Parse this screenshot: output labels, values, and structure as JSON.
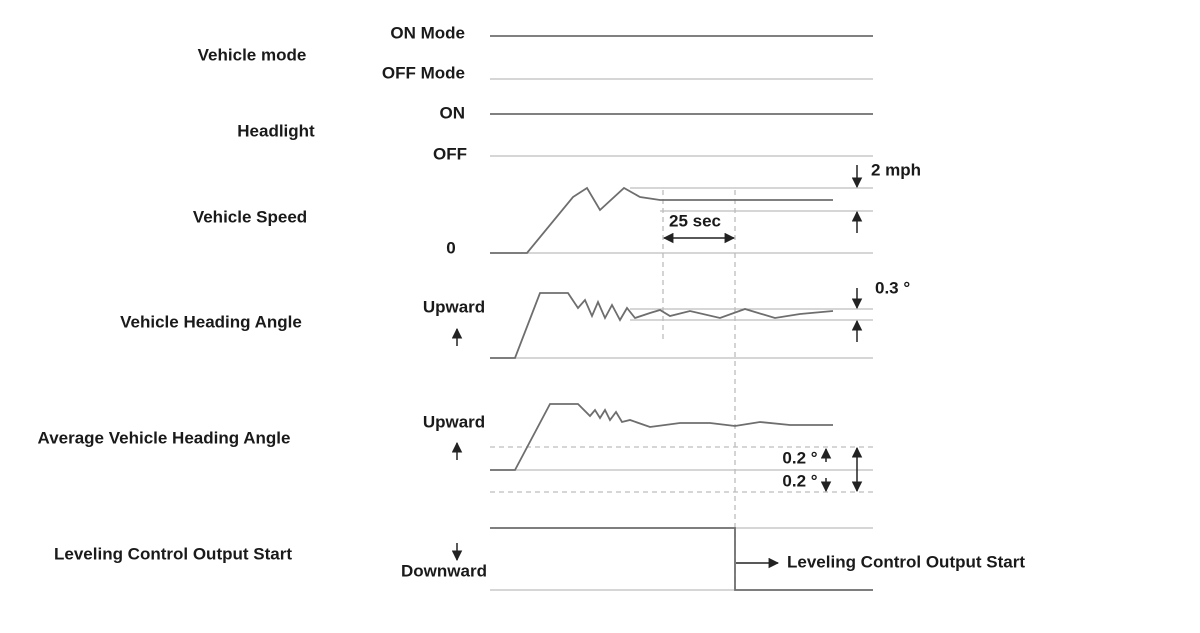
{
  "rows": [
    {
      "label": "Vehicle mode",
      "levels": [
        "ON Mode",
        "OFF Mode"
      ]
    },
    {
      "label": "Headlight",
      "levels": [
        "ON",
        "OFF"
      ]
    },
    {
      "label": "Vehicle Speed",
      "levels": [
        "0"
      ]
    },
    {
      "label": "Vehicle Heading Angle",
      "levels": [
        "Upward"
      ]
    },
    {
      "label": "Average Vehicle Heading Angle",
      "levels": [
        "Upward"
      ]
    },
    {
      "label": "Leveling Control Output Start",
      "levels": [
        "Downward"
      ]
    }
  ],
  "annotations": {
    "speed_band": "2 mph",
    "time": "25 sec",
    "heading_band": "0.3 °",
    "average_upper": "0.2 °",
    "average_lower": "0.2 °",
    "output": "Leveling Control Output Start"
  }
}
